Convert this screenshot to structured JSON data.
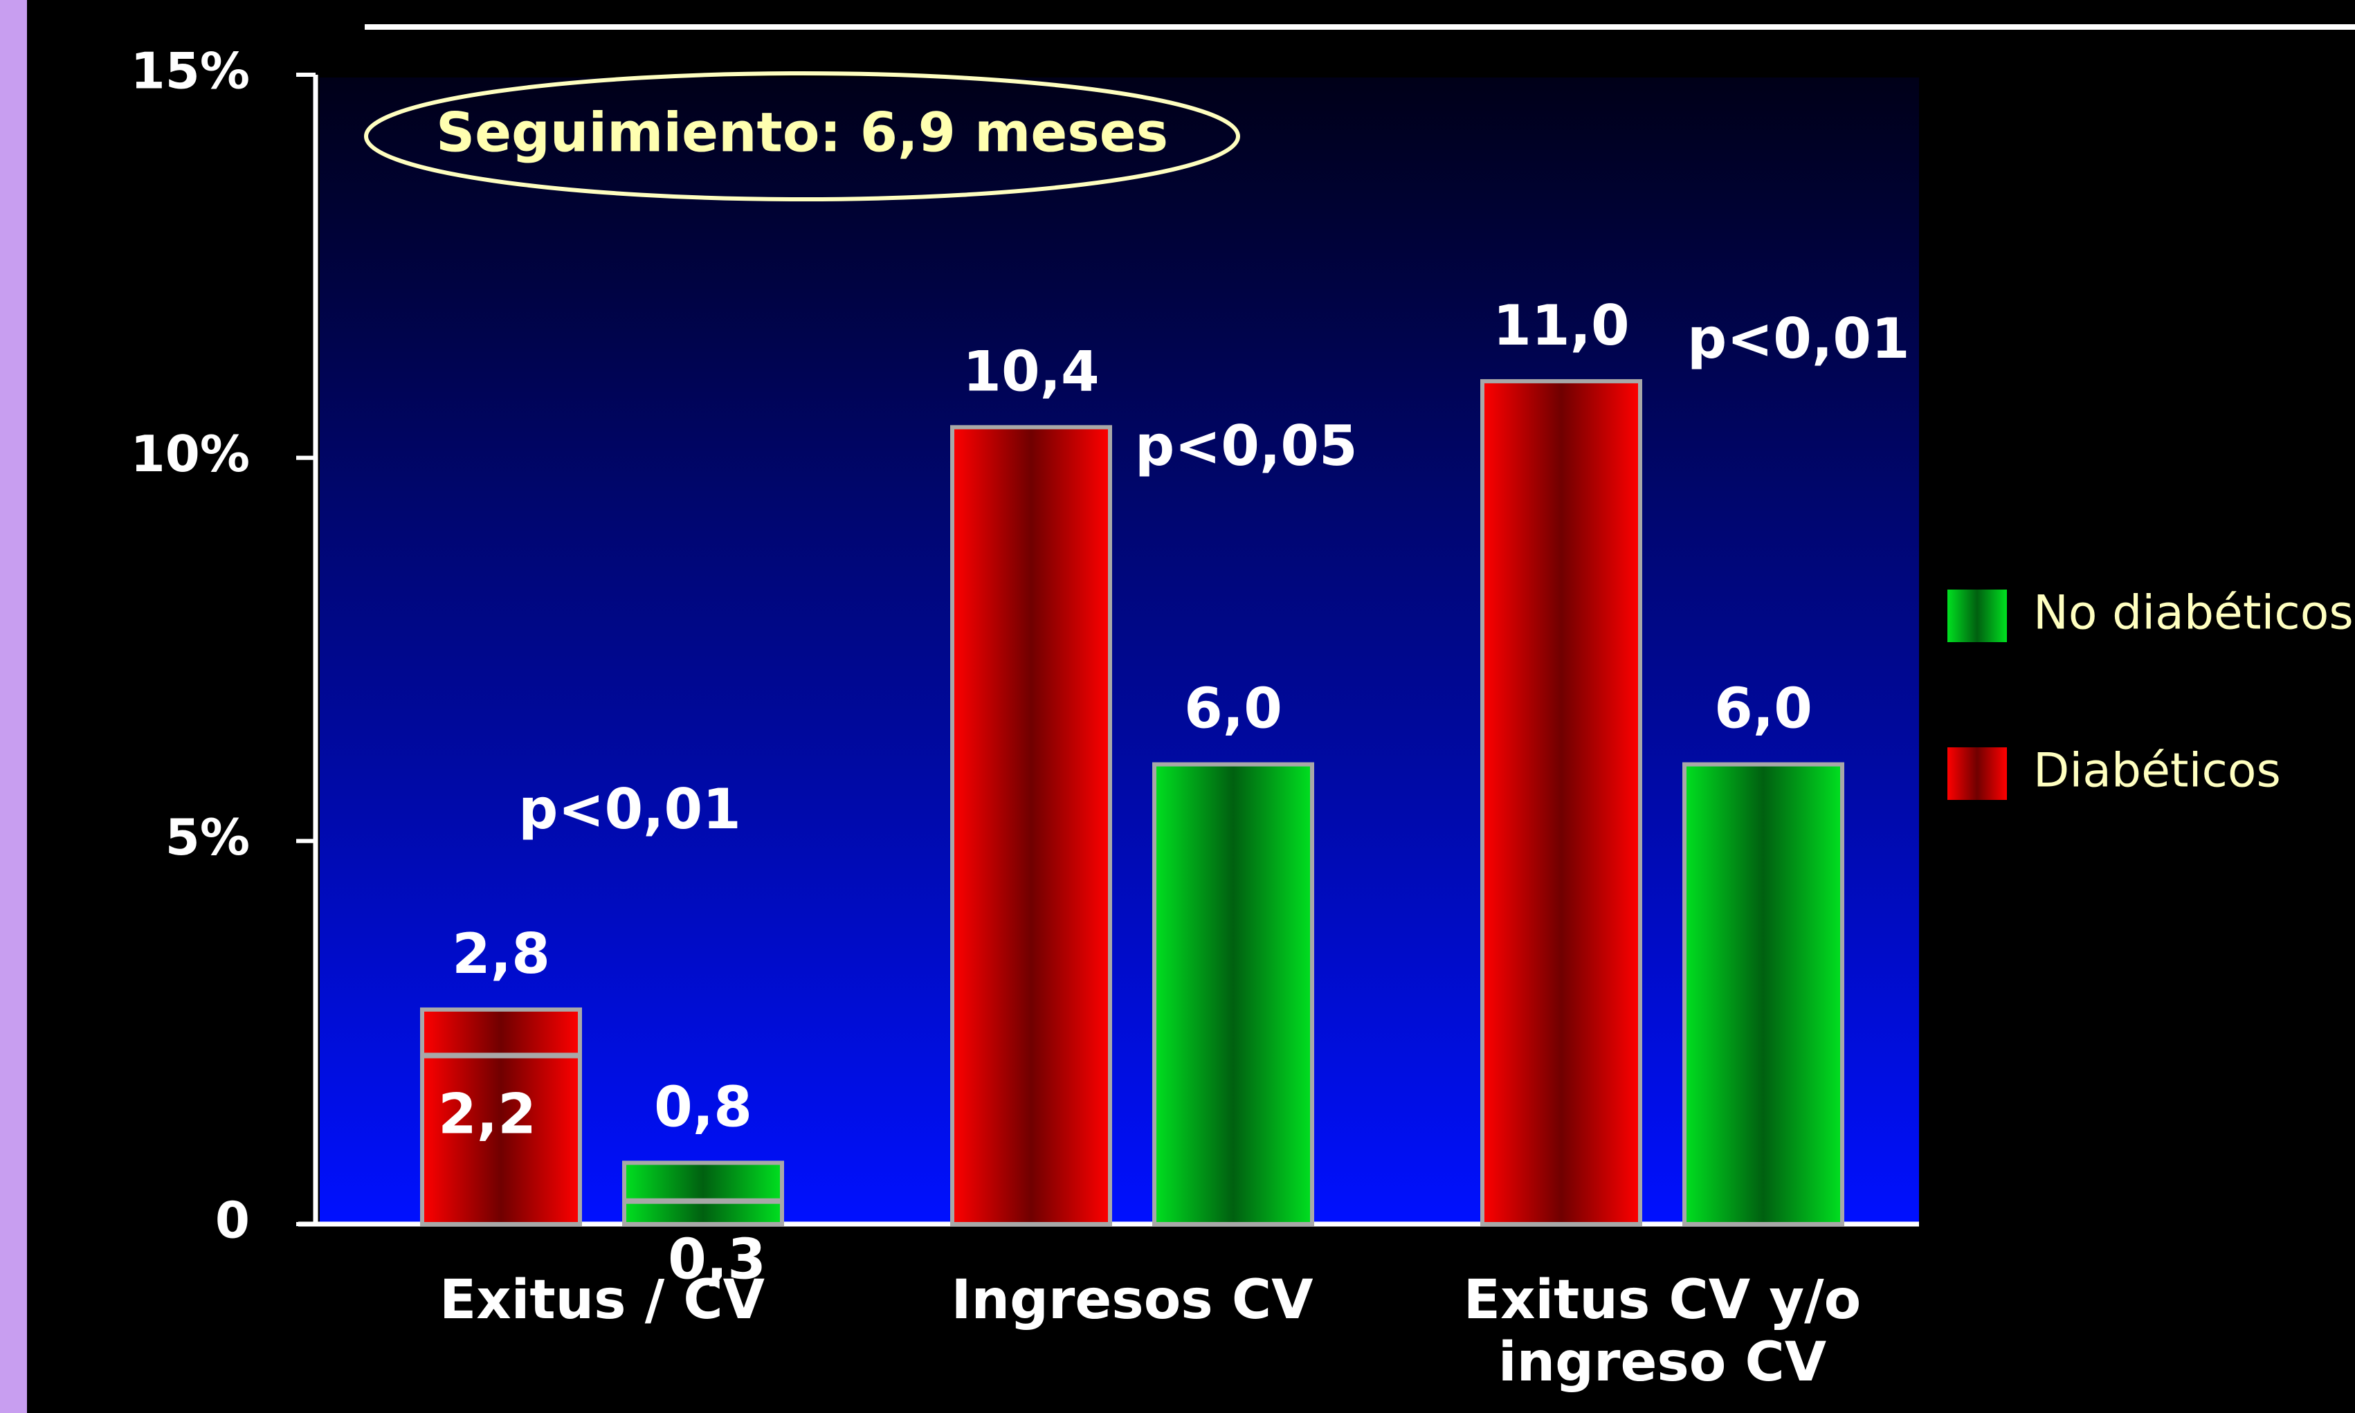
{
  "chart_data": {
    "type": "bar",
    "annotation": "Seguimiento: 6,9 meses",
    "categories": [
      "Exitus / CV",
      "Ingresos CV",
      "Exitus CV y/o\ningreso CV"
    ],
    "series": [
      {
        "name": "No diabéticos",
        "color": "#00e020",
        "values": [
          0.8,
          6.0,
          6.0
        ],
        "value_labels": [
          "0,8",
          "6,0",
          "6,0"
        ],
        "sub_values": [
          0.3,
          null,
          null
        ],
        "sub_value_labels": [
          "0,3",
          null,
          null
        ]
      },
      {
        "name": "Diabéticos",
        "color": "#ff0000",
        "values": [
          2.8,
          10.4,
          11.0
        ],
        "value_labels": [
          "2,8",
          "10,4",
          "11,0"
        ],
        "sub_values": [
          2.2,
          null,
          null
        ],
        "sub_value_labels": [
          "2,2",
          null,
          null
        ]
      }
    ],
    "p_values": [
      "p<0,01",
      "p<0,05",
      "p<0,01"
    ],
    "ylim": [
      0,
      15
    ],
    "yticks": [
      0,
      {
        "value": 5,
        "label": "5%"
      },
      {
        "value": 10,
        "label": "10%"
      },
      {
        "value": 15,
        "label": "15%"
      }
    ]
  }
}
